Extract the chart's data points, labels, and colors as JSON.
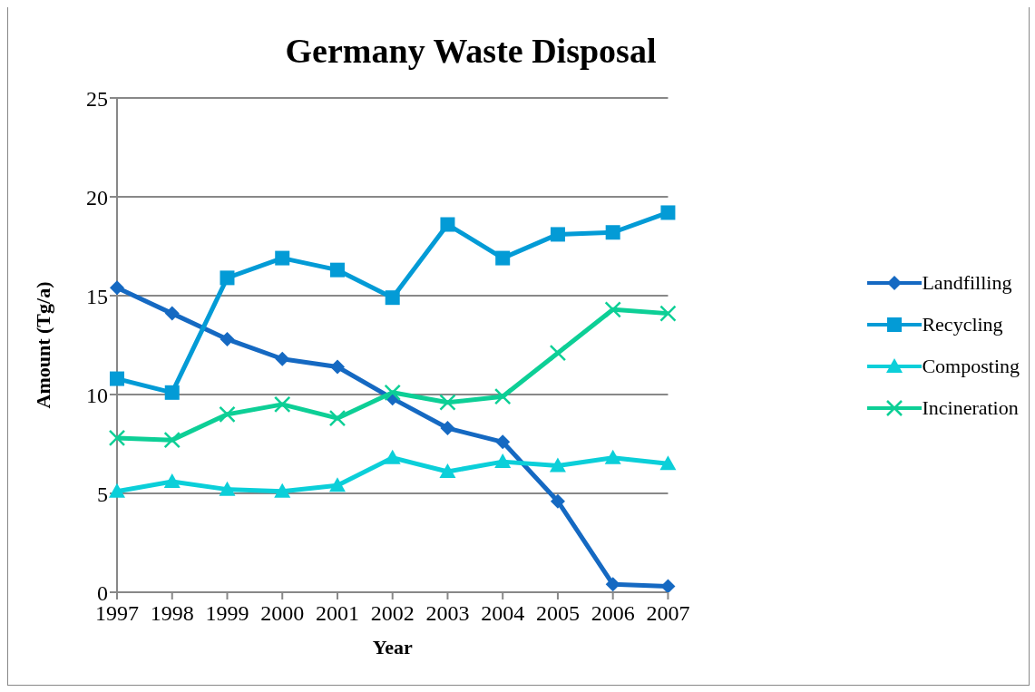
{
  "chart_data": {
    "type": "line",
    "title": "Germany Waste Disposal",
    "xlabel": "Year",
    "ylabel": "Amount (Tg/a)",
    "categories": [
      "1997",
      "1998",
      "1999",
      "2000",
      "2001",
      "2002",
      "2003",
      "2004",
      "2005",
      "2006",
      "2007"
    ],
    "series": [
      {
        "name": "Landfilling",
        "color": "#1569c2",
        "marker": "diamond",
        "values": [
          15.4,
          14.1,
          12.8,
          11.8,
          11.4,
          9.8,
          8.3,
          7.6,
          4.6,
          0.4,
          0.3
        ]
      },
      {
        "name": "Recycling",
        "color": "#039bd6",
        "marker": "square",
        "values": [
          10.8,
          10.1,
          15.9,
          16.9,
          16.3,
          14.9,
          18.6,
          16.9,
          18.1,
          18.2,
          19.2
        ]
      },
      {
        "name": "Composting",
        "color": "#0bcfd9",
        "marker": "triangle",
        "values": [
          5.1,
          5.6,
          5.2,
          5.1,
          5.4,
          6.8,
          6.1,
          6.6,
          6.4,
          6.8,
          6.5
        ]
      },
      {
        "name": "Incineration",
        "color": "#0dcf96",
        "marker": "cross",
        "values": [
          7.8,
          7.7,
          9.0,
          9.5,
          8.8,
          10.1,
          9.6,
          9.9,
          12.1,
          14.3,
          14.1
        ]
      }
    ],
    "ylim": [
      0,
      25
    ],
    "yticks": [
      0,
      5,
      10,
      15,
      20,
      25
    ],
    "grid": "y",
    "legend": "right",
    "line_style": "solid"
  }
}
